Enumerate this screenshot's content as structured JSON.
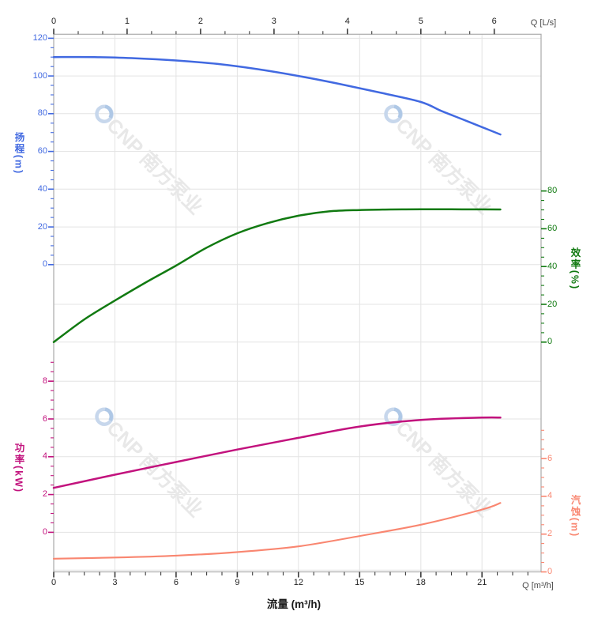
{
  "watermark": {
    "text": "CNP 南方泵业",
    "logo": "cnp-ring-logo",
    "count": 4
  },
  "labels": {
    "top_axis_unit": "Q [L/s]",
    "bottom_axis_unit": "Q [m³/h]",
    "bottom_title": "流量 (m³/h)"
  },
  "chart_data": {
    "type": "line",
    "title": "",
    "grid": "on",
    "x_bottom": {
      "label": "流量 (m³/h)",
      "unit": "m³/h",
      "ticks": [
        0,
        3,
        6,
        9,
        12,
        15,
        18,
        21
      ],
      "minor_step": 0.75,
      "range": [
        0,
        23.9
      ]
    },
    "x_top": {
      "label": "Q [L/s]",
      "unit": "L/s",
      "ticks": [
        0,
        1,
        2,
        3,
        4,
        5,
        6
      ],
      "minor_step": 0.3333,
      "range": [
        0,
        6.64
      ]
    },
    "y_axes": {
      "head": {
        "title": "扬程(m)",
        "unit": "m",
        "color": "#4169E1",
        "side": "left",
        "ticks": [
          120,
          100,
          80,
          60,
          40,
          20,
          0
        ],
        "minor_step": 5,
        "range": [
          0,
          120
        ]
      },
      "efficiency": {
        "title": "效率(%)",
        "unit": "%",
        "color": "#117A11",
        "side": "right",
        "ticks": [
          80,
          60,
          40,
          20,
          0
        ],
        "minor_step": 5,
        "range": [
          0,
          80
        ]
      },
      "power": {
        "title": "功率(kW)",
        "unit": "kW",
        "color": "#C2127D",
        "side": "left",
        "ticks": [
          8,
          6,
          4,
          2,
          0
        ],
        "minor_step": 0.5,
        "range": [
          0,
          9
        ]
      },
      "npsh": {
        "title": "汽蚀(m)",
        "unit": "m",
        "color": "#F98670",
        "side": "right",
        "ticks": [
          6,
          4,
          2,
          0
        ],
        "minor_step": 0.5,
        "range": [
          0,
          7.5
        ]
      }
    },
    "series": [
      {
        "name": "扬程 (head)",
        "axis": "head",
        "x": [
          0,
          2,
          4,
          6,
          8,
          10,
          12,
          14,
          16,
          18,
          19,
          20,
          21,
          21.9
        ],
        "y": [
          110,
          110,
          109.4,
          108.2,
          106.4,
          103.6,
          100,
          95.8,
          91.2,
          86.2,
          81.5,
          77.2,
          72.9,
          69
        ],
        "width": 2.5
      },
      {
        "name": "效率 (efficiency)",
        "axis": "efficiency",
        "x": [
          0,
          1.5,
          3,
          4.5,
          6,
          7.5,
          9,
          10.5,
          12,
          13.5,
          15,
          16.5,
          18,
          19.5,
          21,
          21.9
        ],
        "y": [
          0,
          12,
          22,
          31.5,
          40.5,
          50,
          57.6,
          63,
          66.9,
          69.2,
          69.9,
          70.2,
          70.3,
          70.3,
          70.25,
          70.2
        ],
        "width": 2.5
      },
      {
        "name": "功率 (power)",
        "axis": "power",
        "x": [
          0,
          3,
          6,
          9,
          12,
          15,
          18,
          21,
          21.9
        ],
        "y": [
          2.35,
          3.05,
          3.72,
          4.38,
          5.0,
          5.6,
          5.95,
          6.07,
          6.07
        ],
        "width": 2.5
      },
      {
        "name": "汽蚀 (NPSH)",
        "axis": "npsh",
        "x": [
          0,
          3,
          6,
          9,
          12,
          15,
          18,
          21,
          21.9
        ],
        "y": [
          0.7,
          0.76,
          0.86,
          1.05,
          1.35,
          1.9,
          2.5,
          3.3,
          3.65
        ],
        "width": 2.1
      }
    ]
  }
}
